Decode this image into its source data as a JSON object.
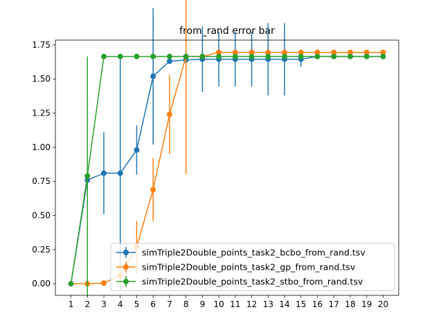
{
  "chart_data": {
    "type": "line",
    "title": "from_rand error bar",
    "xlabel": "",
    "ylabel": "",
    "x": [
      1,
      2,
      3,
      4,
      5,
      6,
      7,
      8,
      9,
      10,
      11,
      12,
      13,
      14,
      15,
      16,
      17,
      18,
      19,
      20
    ],
    "xlim": [
      0.05,
      20.95
    ],
    "ylim": [
      -0.085,
      1.785
    ],
    "yticks": [
      0.0,
      0.25,
      0.5,
      0.75,
      1.0,
      1.25,
      1.5,
      1.75
    ],
    "ytick_labels": [
      "0.00",
      "0.25",
      "0.50",
      "0.75",
      "1.00",
      "1.25",
      "1.50",
      "1.75"
    ],
    "xtick_labels": [
      "1",
      "2",
      "3",
      "4",
      "5",
      "6",
      "7",
      "8",
      "9",
      "10",
      "11",
      "12",
      "13",
      "14",
      "15",
      "16",
      "17",
      "18",
      "19",
      "20"
    ],
    "grid": false,
    "legend_position": "lower-right",
    "series": [
      {
        "name": "simTriple2Double_points_task2_bcbo_from_rand.tsv",
        "color": "#1f77b4",
        "values": [
          0.0,
          0.76,
          0.81,
          0.81,
          0.98,
          1.52,
          1.63,
          1.64,
          1.645,
          1.645,
          1.645,
          1.645,
          1.645,
          1.645,
          1.645,
          1.665,
          1.665,
          1.665,
          1.665,
          1.665
        ],
        "errors": [
          0.0,
          0.59,
          0.3,
          0.86,
          0.18,
          0.5,
          0.0,
          0.0,
          0.24,
          0.2,
          0.2,
          0.2,
          0.265,
          0.265,
          0.055,
          0.0,
          0.0,
          0.0,
          0.0,
          0.0
        ]
      },
      {
        "name": "simTriple2Double_points_task2_gp_from_rand.tsv",
        "color": "#ff7f0e",
        "values": [
          0.0,
          0.0,
          0.005,
          0.06,
          0.27,
          0.69,
          1.24,
          1.665,
          1.665,
          1.695,
          1.695,
          1.695,
          1.695,
          1.695,
          1.695,
          1.695,
          1.695,
          1.695,
          1.695,
          1.695
        ],
        "errors": [
          0.0,
          0.0,
          0.0,
          0.06,
          0.19,
          0.23,
          0.29,
          0.86,
          0.0,
          0.0,
          0.0,
          0.0,
          0.0,
          0.0,
          0.0,
          0.0,
          0.0,
          0.0,
          0.0,
          0.0
        ]
      },
      {
        "name": "simTriple2Double_points_task2_stbo_from_rand.tsv",
        "color": "#2ca02c",
        "values": [
          0.0,
          0.79,
          1.665,
          1.665,
          1.665,
          1.665,
          1.665,
          1.665,
          1.665,
          1.665,
          1.665,
          1.665,
          1.665,
          1.665,
          1.665,
          1.665,
          1.665,
          1.665,
          1.665,
          1.665
        ],
        "errors": [
          0.0,
          0.875,
          0.0,
          0.0,
          0.0,
          0.0,
          0.0,
          0.0,
          0.0,
          0.0,
          0.0,
          0.0,
          0.0,
          0.0,
          0.0,
          0.0,
          0.0,
          0.0,
          0.0,
          0.0
        ]
      }
    ]
  }
}
